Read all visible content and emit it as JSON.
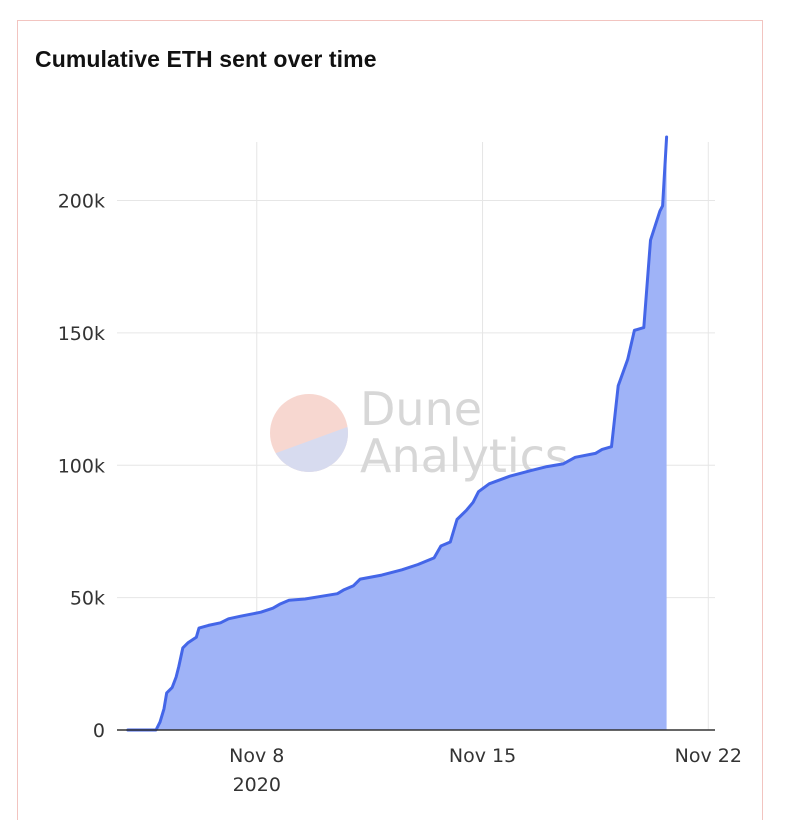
{
  "colors": {
    "line": "#4466e8",
    "area": "#9fb3f7",
    "grid": "#e6e6e6",
    "axis": "#333333",
    "panel_border": "#f2c4c0",
    "watermark_top": "#f7d7d0",
    "watermark_bottom": "#d7dbef"
  },
  "watermark": {
    "line1": "Dune",
    "line2": "Analytics"
  },
  "chart_data": {
    "type": "area",
    "title": "Cumulative ETH sent over time",
    "xlabel": "",
    "ylabel": "",
    "x_axis": {
      "range": [
        "2020-11-03T16:00",
        "2020-11-22T05:00"
      ],
      "ticks": [
        {
          "value": "2020-11-08",
          "label": "Nov 8",
          "sublabel": "2020"
        },
        {
          "value": "2020-11-15",
          "label": "Nov 15",
          "sublabel": ""
        },
        {
          "value": "2020-11-22",
          "label": "Nov 22",
          "sublabel": ""
        }
      ]
    },
    "y_axis": {
      "range": [
        0,
        224000
      ],
      "ticks": [
        {
          "value": 0,
          "label": "0"
        },
        {
          "value": 50000,
          "label": "50k"
        },
        {
          "value": 100000,
          "label": "100k"
        },
        {
          "value": 150000,
          "label": "150k"
        },
        {
          "value": 200000,
          "label": "200k"
        }
      ]
    },
    "grid": true,
    "legend": "none",
    "series": [
      {
        "points": [
          [
            "2020-11-04T00:00",
            0
          ],
          [
            "2020-11-04T21:00",
            0
          ],
          [
            "2020-11-05T00:00",
            3000
          ],
          [
            "2020-11-05T03:00",
            8000
          ],
          [
            "2020-11-05T05:00",
            14000
          ],
          [
            "2020-11-05T09:00",
            16000
          ],
          [
            "2020-11-05T12:00",
            20000
          ],
          [
            "2020-11-05T14:00",
            24000
          ],
          [
            "2020-11-05T17:00",
            31000
          ],
          [
            "2020-11-05T21:00",
            33000
          ],
          [
            "2020-11-06T03:00",
            35000
          ],
          [
            "2020-11-06T05:00",
            38500
          ],
          [
            "2020-11-06T12:00",
            39500
          ],
          [
            "2020-11-06T21:00",
            40500
          ],
          [
            "2020-11-07T03:00",
            42000
          ],
          [
            "2020-11-07T12:00",
            43000
          ],
          [
            "2020-11-08T03:00",
            44500
          ],
          [
            "2020-11-08T12:00",
            46000
          ],
          [
            "2020-11-08T17:00",
            47500
          ],
          [
            "2020-11-09T00:00",
            49000
          ],
          [
            "2020-11-09T12:00",
            49500
          ],
          [
            "2020-11-10T00:00",
            50500
          ],
          [
            "2020-11-10T12:00",
            51500
          ],
          [
            "2020-11-10T17:00",
            53000
          ],
          [
            "2020-11-11T00:00",
            54500
          ],
          [
            "2020-11-11T05:00",
            57000
          ],
          [
            "2020-11-11T21:00",
            58500
          ],
          [
            "2020-11-12T12:00",
            60500
          ],
          [
            "2020-11-13T00:00",
            62500
          ],
          [
            "2020-11-13T12:00",
            65000
          ],
          [
            "2020-11-13T17:00",
            69500
          ],
          [
            "2020-11-14T00:00",
            71000
          ],
          [
            "2020-11-14T05:00",
            79500
          ],
          [
            "2020-11-14T12:00",
            83000
          ],
          [
            "2020-11-14T17:00",
            86000
          ],
          [
            "2020-11-14T21:00",
            90000
          ],
          [
            "2020-11-15T05:00",
            93000
          ],
          [
            "2020-11-15T21:00",
            96000
          ],
          [
            "2020-11-16T12:00",
            98000
          ],
          [
            "2020-11-17T00:00",
            99500
          ],
          [
            "2020-11-17T12:00",
            100500
          ],
          [
            "2020-11-17T21:00",
            103000
          ],
          [
            "2020-11-18T12:00",
            104500
          ],
          [
            "2020-11-18T17:00",
            106000
          ],
          [
            "2020-11-19T00:00",
            107000
          ],
          [
            "2020-11-19T05:00",
            130000
          ],
          [
            "2020-11-19T12:00",
            140000
          ],
          [
            "2020-11-19T17:00",
            151000
          ],
          [
            "2020-11-20T00:00",
            152000
          ],
          [
            "2020-11-20T05:00",
            185000
          ],
          [
            "2020-11-20T12:00",
            196000
          ],
          [
            "2020-11-20T14:00",
            198000
          ],
          [
            "2020-11-20T17:00",
            224000
          ]
        ]
      }
    ]
  }
}
